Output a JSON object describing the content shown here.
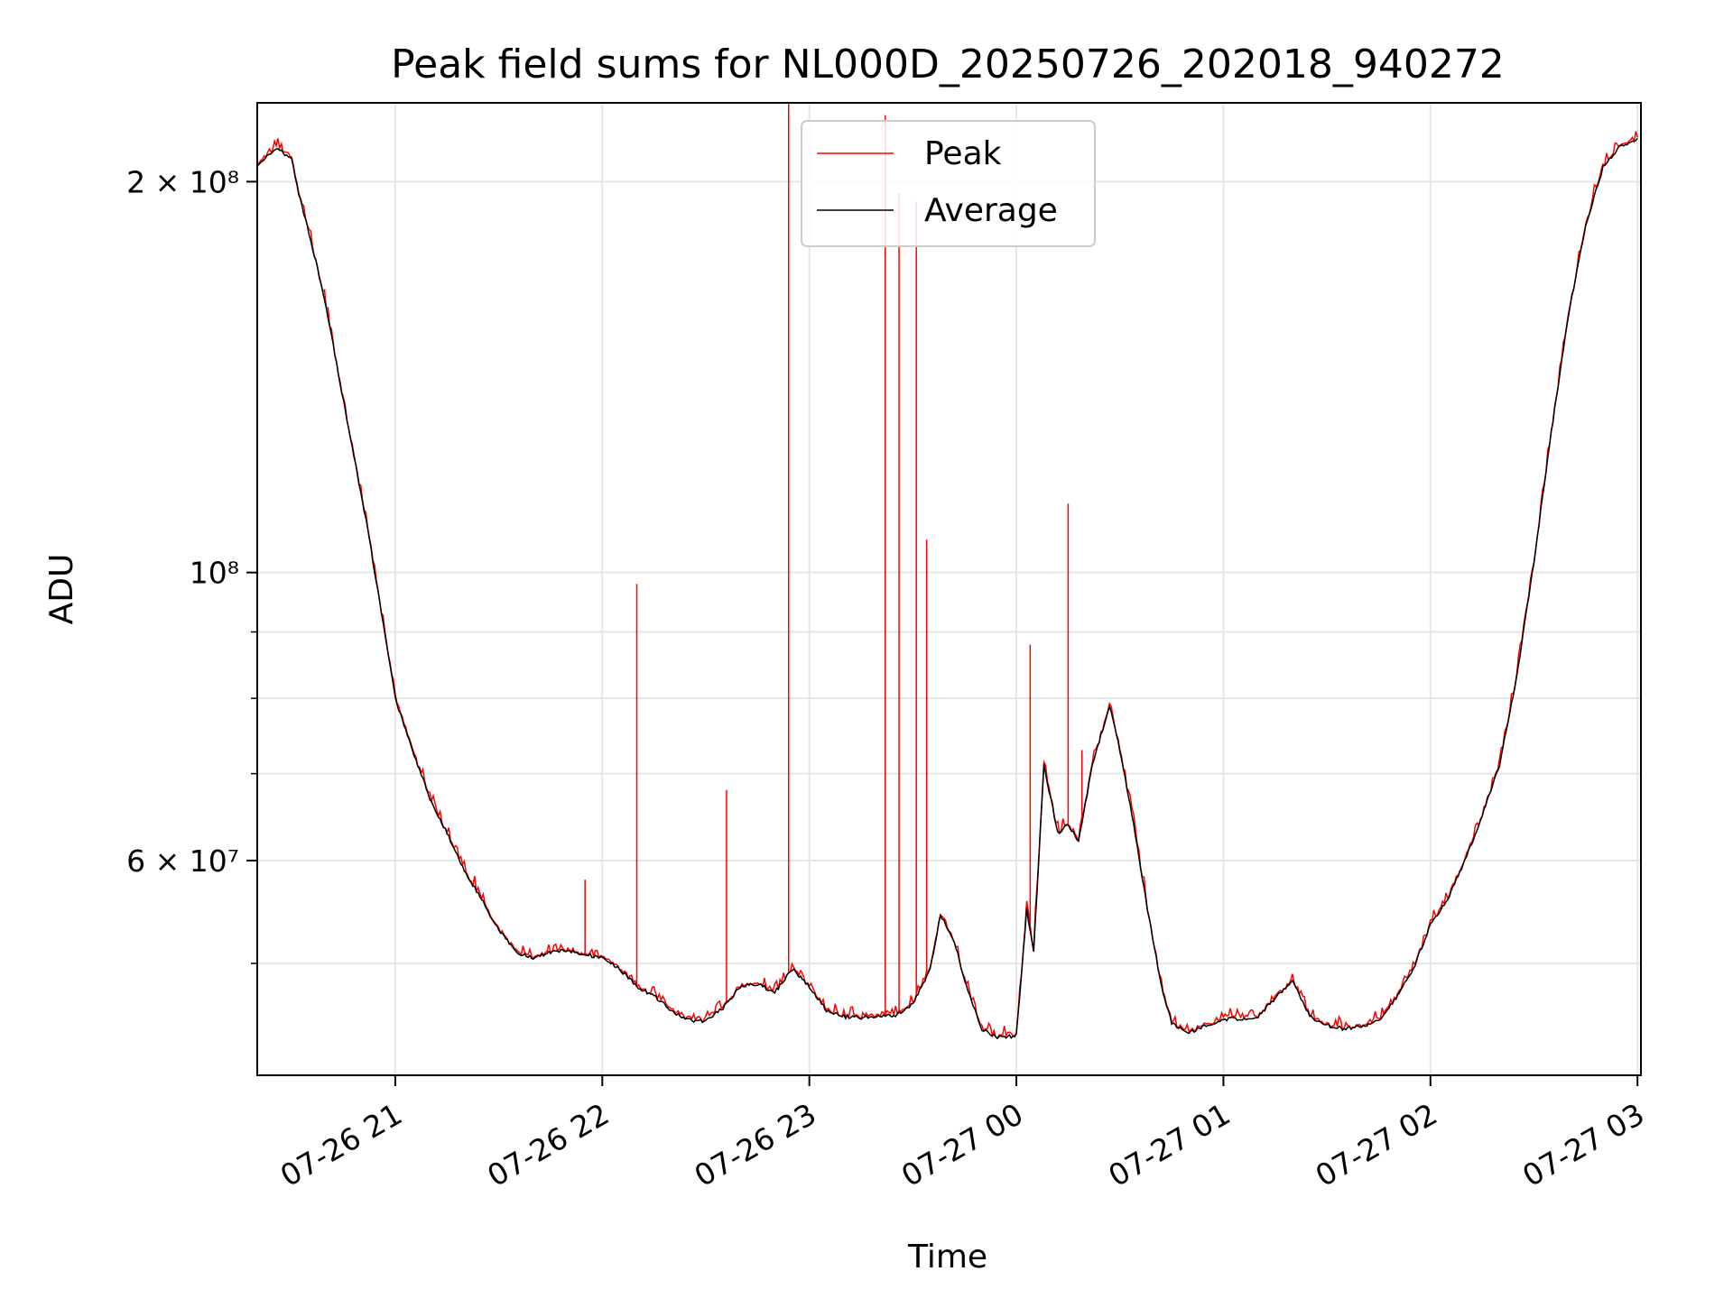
{
  "chart_data": {
    "type": "line",
    "title": "Peak field sums for NL000D_20250726_202018_940272",
    "xlabel": "Time",
    "ylabel": "ADU",
    "yscale": "log",
    "xlim": [
      "2025-07-26 20:20",
      "2025-07-27 03:01"
    ],
    "ylim": [
      41000000,
      230000000
    ],
    "grid": true,
    "legend": {
      "placement": "top-center",
      "entries": [
        "Peak",
        "Average"
      ]
    },
    "x_ticks": [
      {
        "value": "2025-07-26 21:00",
        "label": "07-26 21"
      },
      {
        "value": "2025-07-26 22:00",
        "label": "07-26 22"
      },
      {
        "value": "2025-07-26 23:00",
        "label": "07-26 23"
      },
      {
        "value": "2025-07-27 00:00",
        "label": "07-27 00"
      },
      {
        "value": "2025-07-27 01:00",
        "label": "07-27 01"
      },
      {
        "value": "2025-07-27 02:00",
        "label": "07-27 02"
      },
      {
        "value": "2025-07-27 03:00",
        "label": "07-27 03"
      }
    ],
    "y_ticks": [
      {
        "value": 60000000,
        "label": "6 × 10⁷"
      },
      {
        "value": 100000000,
        "label": "10⁸"
      },
      {
        "value": 200000000,
        "label": "2 × 10⁸"
      }
    ],
    "y_minor_ticks": [
      50000000,
      70000000,
      80000000,
      90000000
    ],
    "series": [
      {
        "name": "Average",
        "color": "#000000",
        "points": [
          [
            "2025-07-26 20:20",
            205000000
          ],
          [
            "2025-07-26 20:23",
            210000000
          ],
          [
            "2025-07-26 20:26",
            212000000
          ],
          [
            "2025-07-26 20:30",
            208000000
          ],
          [
            "2025-07-26 20:32",
            196000000
          ],
          [
            "2025-07-26 20:36",
            178000000
          ],
          [
            "2025-07-26 20:40",
            160000000
          ],
          [
            "2025-07-26 20:44",
            140000000
          ],
          [
            "2025-07-26 20:48",
            123000000
          ],
          [
            "2025-07-26 20:52",
            108000000
          ],
          [
            "2025-07-26 20:56",
            93000000
          ],
          [
            "2025-07-26 21:00",
            80000000
          ],
          [
            "2025-07-26 21:05",
            73000000
          ],
          [
            "2025-07-26 21:10",
            67000000
          ],
          [
            "2025-07-26 21:15",
            63000000
          ],
          [
            "2025-07-26 21:20",
            59000000
          ],
          [
            "2025-07-26 21:25",
            56000000
          ],
          [
            "2025-07-26 21:30",
            53000000
          ],
          [
            "2025-07-26 21:35",
            51000000
          ],
          [
            "2025-07-26 21:40",
            50500000
          ],
          [
            "2025-07-26 21:45",
            51000000
          ],
          [
            "2025-07-26 21:50",
            51200000
          ],
          [
            "2025-07-26 21:55",
            50800000
          ],
          [
            "2025-07-26 22:00",
            50500000
          ],
          [
            "2025-07-26 22:05",
            49500000
          ],
          [
            "2025-07-26 22:10",
            48000000
          ],
          [
            "2025-07-26 22:15",
            47200000
          ],
          [
            "2025-07-26 22:20",
            46000000
          ],
          [
            "2025-07-26 22:25",
            45200000
          ],
          [
            "2025-07-26 22:30",
            45100000
          ],
          [
            "2025-07-26 22:35",
            46200000
          ],
          [
            "2025-07-26 22:40",
            48000000
          ],
          [
            "2025-07-26 22:45",
            48200000
          ],
          [
            "2025-07-26 22:50",
            47500000
          ],
          [
            "2025-07-26 22:55",
            49500000
          ],
          [
            "2025-07-26 23:00",
            48000000
          ],
          [
            "2025-07-26 23:05",
            46000000
          ],
          [
            "2025-07-26 23:10",
            45500000
          ],
          [
            "2025-07-26 23:15",
            45400000
          ],
          [
            "2025-07-26 23:20",
            45500000
          ],
          [
            "2025-07-26 23:25",
            45600000
          ],
          [
            "2025-07-26 23:30",
            46500000
          ],
          [
            "2025-07-26 23:35",
            49500000
          ],
          [
            "2025-07-26 23:38",
            54500000
          ],
          [
            "2025-07-26 23:42",
            52000000
          ],
          [
            "2025-07-26 23:45",
            48500000
          ],
          [
            "2025-07-26 23:50",
            44500000
          ],
          [
            "2025-07-26 23:55",
            43800000
          ],
          [
            "2025-07-27 00:00",
            44000000
          ],
          [
            "2025-07-27 00:03",
            55000000
          ],
          [
            "2025-07-27 00:05",
            51000000
          ],
          [
            "2025-07-27 00:08",
            71000000
          ],
          [
            "2025-07-27 00:12",
            63000000
          ],
          [
            "2025-07-27 00:15",
            64000000
          ],
          [
            "2025-07-27 00:18",
            62000000
          ],
          [
            "2025-07-27 00:22",
            71000000
          ],
          [
            "2025-07-27 00:27",
            79000000
          ],
          [
            "2025-07-27 00:30",
            73000000
          ],
          [
            "2025-07-27 00:34",
            64000000
          ],
          [
            "2025-07-27 00:38",
            55000000
          ],
          [
            "2025-07-27 00:42",
            48000000
          ],
          [
            "2025-07-27 00:45",
            45000000
          ],
          [
            "2025-07-27 00:50",
            44200000
          ],
          [
            "2025-07-27 00:55",
            44800000
          ],
          [
            "2025-07-27 01:00",
            45300000
          ],
          [
            "2025-07-27 01:05",
            45300000
          ],
          [
            "2025-07-27 01:10",
            45500000
          ],
          [
            "2025-07-27 01:15",
            47000000
          ],
          [
            "2025-07-27 01:20",
            48500000
          ],
          [
            "2025-07-27 01:25",
            45500000
          ],
          [
            "2025-07-27 01:30",
            44800000
          ],
          [
            "2025-07-27 01:35",
            44500000
          ],
          [
            "2025-07-27 01:40",
            44700000
          ],
          [
            "2025-07-27 01:45",
            45200000
          ],
          [
            "2025-07-27 01:50",
            47000000
          ],
          [
            "2025-07-27 01:55",
            49500000
          ],
          [
            "2025-07-27 02:00",
            53500000
          ],
          [
            "2025-07-27 02:05",
            56000000
          ],
          [
            "2025-07-27 02:10",
            60000000
          ],
          [
            "2025-07-27 02:15",
            65000000
          ],
          [
            "2025-07-27 02:20",
            71000000
          ],
          [
            "2025-07-27 02:25",
            83000000
          ],
          [
            "2025-07-27 02:30",
            102000000
          ],
          [
            "2025-07-27 02:35",
            128000000
          ],
          [
            "2025-07-27 02:40",
            158000000
          ],
          [
            "2025-07-27 02:45",
            185000000
          ],
          [
            "2025-07-27 02:50",
            205000000
          ],
          [
            "2025-07-27 02:55",
            213000000
          ],
          [
            "2025-07-27 03:00",
            216000000
          ]
        ]
      },
      {
        "name": "Peak",
        "color": "#ff0000",
        "spikes": [
          [
            "2025-07-26 21:55",
            58000000
          ],
          [
            "2025-07-26 22:10",
            98000000
          ],
          [
            "2025-07-26 22:36",
            68000000
          ],
          [
            "2025-07-26 22:54",
            230000000
          ],
          [
            "2025-07-26 23:22",
            225000000
          ],
          [
            "2025-07-26 23:26",
            196000000
          ],
          [
            "2025-07-26 23:31",
            193000000
          ],
          [
            "2025-07-26 23:34",
            106000000
          ],
          [
            "2025-07-27 00:04",
            88000000
          ],
          [
            "2025-07-27 00:15",
            113000000
          ],
          [
            "2025-07-27 00:19",
            73000000
          ]
        ]
      }
    ]
  }
}
